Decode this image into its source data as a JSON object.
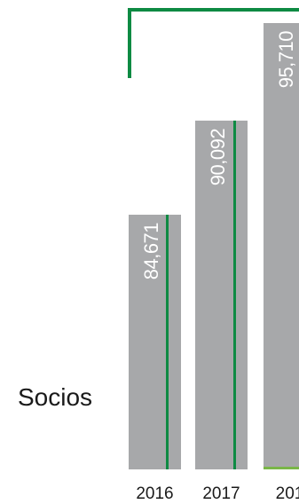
{
  "chart_data": {
    "type": "bar",
    "row_label": "Socios",
    "categories": [
      "2016",
      "2017",
      "201"
    ],
    "values": [
      84671,
      90092,
      95710
    ],
    "value_labels": [
      "84,671",
      "90,092",
      "95,710"
    ],
    "colors": {
      "bar": "#a7a8aa",
      "accent_line": "#0e8a43",
      "text": "#1a1a1a",
      "value_text": "#ffffff"
    }
  }
}
